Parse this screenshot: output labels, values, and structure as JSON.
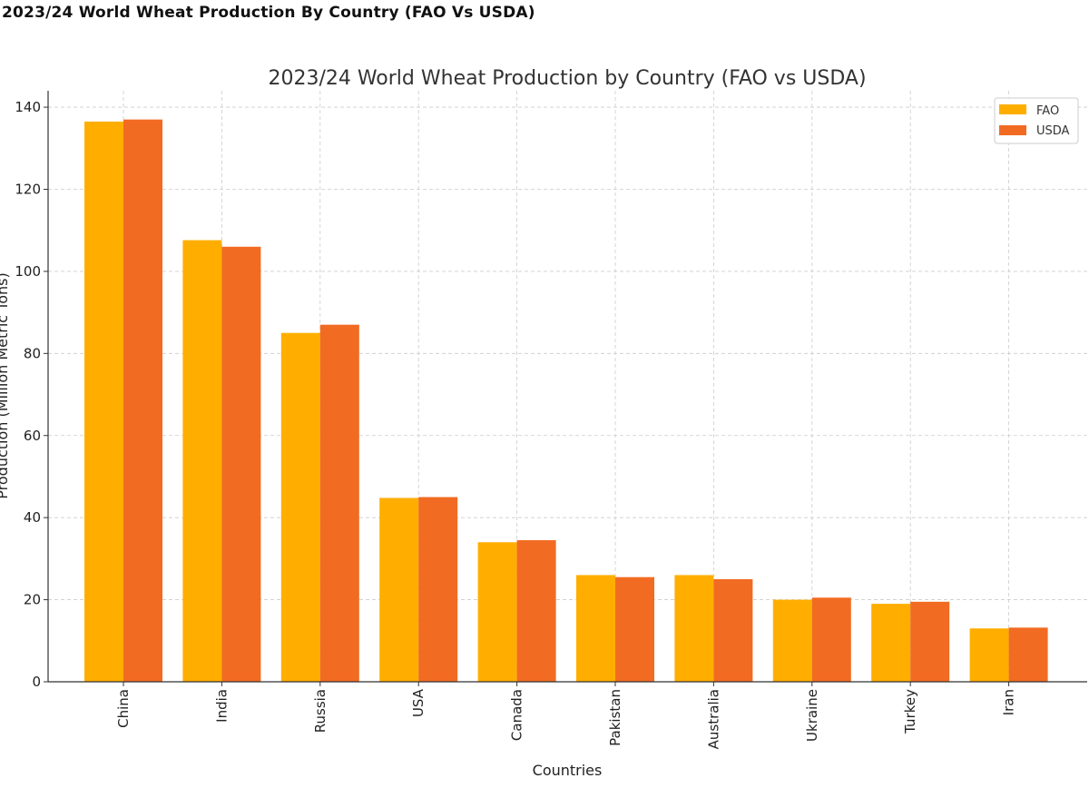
{
  "page": {
    "heading": "2023/24 World Wheat Production By Country (FAO Vs USDA)"
  },
  "chart_data": {
    "type": "bar",
    "title": "2023/24 World Wheat Production by Country (FAO vs USDA)",
    "xlabel": "Countries",
    "ylabel": "Production (Million Metric Tons)",
    "categories": [
      "China",
      "India",
      "Russia",
      "USA",
      "Canada",
      "Pakistan",
      "Australia",
      "Ukraine",
      "Turkey",
      "Iran"
    ],
    "series": [
      {
        "name": "FAO",
        "color": "#FFAE00",
        "values": [
          136.5,
          107.6,
          85.0,
          44.8,
          34.0,
          26.0,
          26.0,
          20.0,
          19.0,
          13.0
        ]
      },
      {
        "name": "USDA",
        "color": "#F26B22",
        "values": [
          137.0,
          106.0,
          87.0,
          45.0,
          34.5,
          25.5,
          25.0,
          20.5,
          19.5,
          13.2
        ]
      }
    ],
    "ylim": [
      0,
      144
    ],
    "yticks": [
      0,
      20,
      40,
      60,
      80,
      100,
      120,
      140
    ],
    "grid": true,
    "legend_position": "top-right"
  }
}
